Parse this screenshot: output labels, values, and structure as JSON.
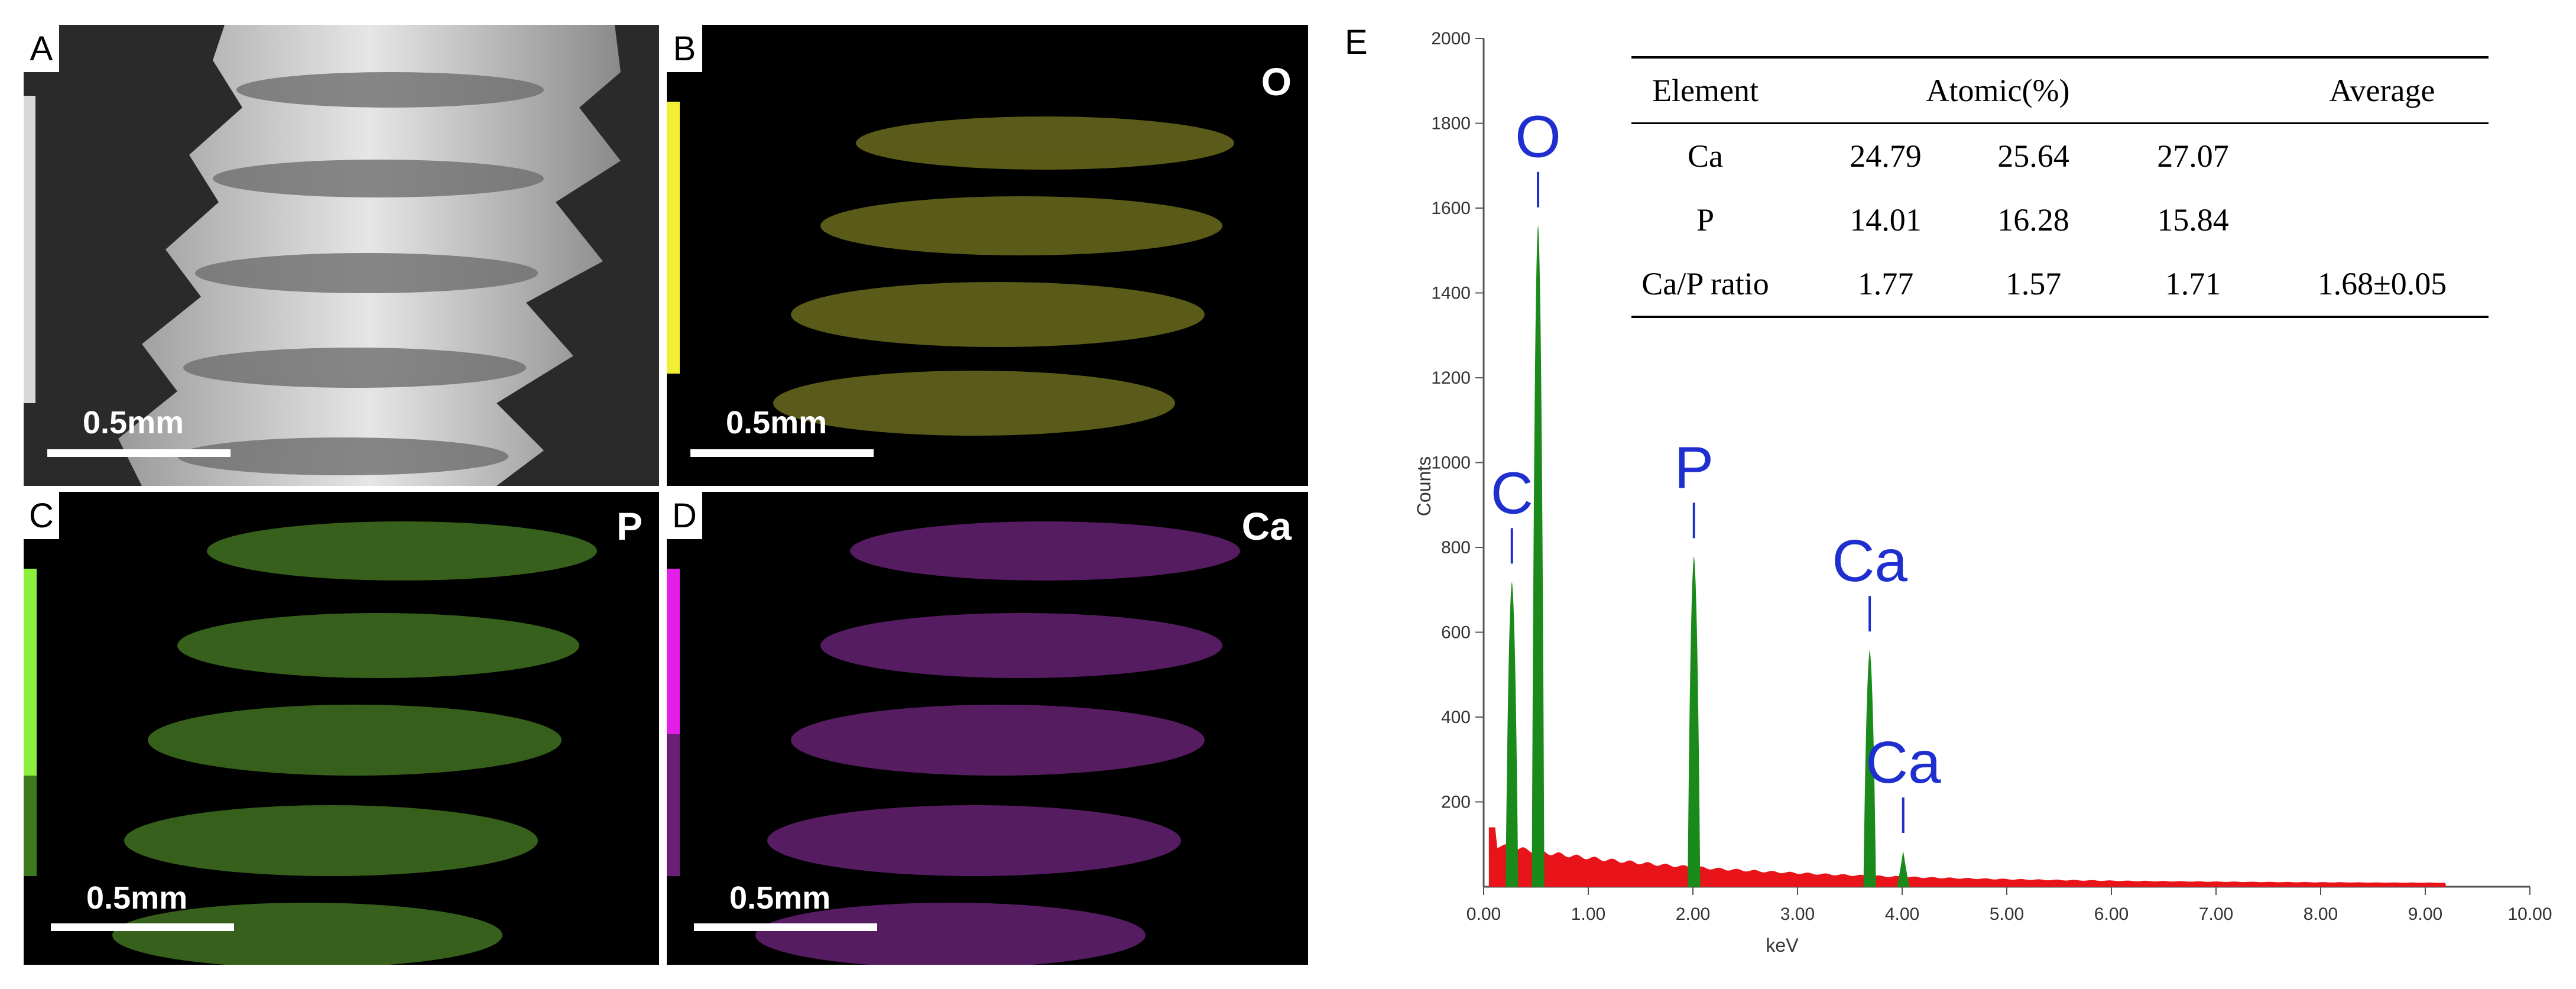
{
  "panels": {
    "A": {
      "letter": "A",
      "element": "",
      "scale_text": "0.5mm"
    },
    "B": {
      "letter": "B",
      "element": "O",
      "scale_text": "0.5mm",
      "color": "#e6e23a"
    },
    "C": {
      "letter": "C",
      "element": "P",
      "scale_text": "0.5mm",
      "color": "#8ee83c"
    },
    "D": {
      "letter": "D",
      "element": "Ca",
      "scale_text": "0.5mm",
      "color": "#d21ed6"
    }
  },
  "panel_e": {
    "letter": "E",
    "table": {
      "headers": [
        "Element",
        "Atomic(%)",
        "Average"
      ],
      "rows": [
        {
          "element": "Ca",
          "v1": "24.79",
          "v2": "25.64",
          "v3": "27.07",
          "avg": ""
        },
        {
          "element": "P",
          "v1": "14.01",
          "v2": "16.28",
          "v3": "15.84",
          "avg": ""
        },
        {
          "element": "Ca/P ratio",
          "v1": "1.77",
          "v2": "1.57",
          "v3": "1.71",
          "avg": "1.68±0.05"
        }
      ]
    }
  },
  "chart_data": {
    "type": "line",
    "title": "",
    "xlabel": "keV",
    "ylabel": "Counts",
    "xlim": [
      0,
      10
    ],
    "ylim": [
      0,
      2000
    ],
    "x_ticks": [
      "0.00",
      "1.00",
      "2.00",
      "3.00",
      "4.00",
      "5.00",
      "6.00",
      "7.00",
      "8.00",
      "9.00",
      "10.00"
    ],
    "y_ticks": [
      "200",
      "400",
      "600",
      "800",
      "1000",
      "1200",
      "1400",
      "1600",
      "1800",
      "2000"
    ],
    "peaks": [
      {
        "label": "C",
        "energy": 0.27,
        "counts": 720,
        "color": "#1a8a1a"
      },
      {
        "label": "O",
        "energy": 0.52,
        "counts": 1560,
        "color": "#1a8a1a"
      },
      {
        "label": "P",
        "energy": 2.01,
        "counts": 780,
        "color": "#1a8a1a"
      },
      {
        "label": "Ca",
        "energy": 3.69,
        "counts": 560,
        "color": "#1a8a1a"
      },
      {
        "label": "Ca",
        "energy": 4.01,
        "counts": 85,
        "color": "#1a8a1a"
      }
    ],
    "background_color": "#e8141a",
    "label_color": "#1f2fcf"
  }
}
